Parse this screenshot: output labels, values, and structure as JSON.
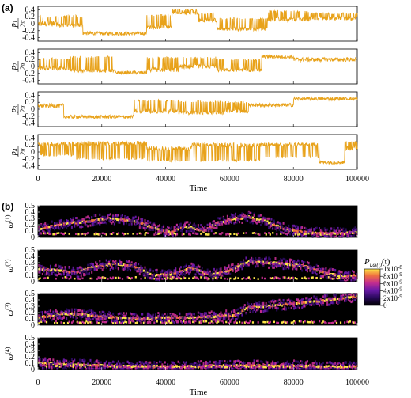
{
  "chart_data": [
    {
      "panel_label": "(a)",
      "type": "line",
      "xlabel": "Time",
      "xlim": [
        0,
        100000
      ],
      "x_ticks": [
        "0",
        "20000",
        "40000",
        "60000",
        "80000",
        "100000"
      ],
      "ylim": [
        -0.5,
        0.5
      ],
      "y_ticks": [
        "0.4",
        "0.2",
        "0",
        "-0.2",
        "-0.4"
      ],
      "line_color": "#e8a21a",
      "series": [
        {
          "ylabel_num": "p",
          "ylabel_sub": "1",
          "ylabel_den": "2π",
          "segments": [
            {
              "x0": 0,
              "x1": 6000,
              "base": 0.0,
              "switch": 0.2,
              "amp": 0.08
            },
            {
              "x0": 6000,
              "x1": 14000,
              "base": -0.05,
              "switch": 0.22,
              "amp": 0.06
            },
            {
              "x0": 14000,
              "x1": 34000,
              "base": -0.28,
              "switch": 0.0,
              "amp": 0.05
            },
            {
              "x0": 34000,
              "x1": 42000,
              "base": -0.1,
              "switch": 0.25,
              "amp": 0.06
            },
            {
              "x0": 42000,
              "x1": 50000,
              "base": 0.3,
              "switch": 0.4,
              "amp": 0.04
            },
            {
              "x0": 50000,
              "x1": 56000,
              "base": 0.1,
              "switch": 0.3,
              "amp": 0.06
            },
            {
              "x0": 56000,
              "x1": 72000,
              "base": -0.15,
              "switch": 0.15,
              "amp": 0.05
            },
            {
              "x0": 72000,
              "x1": 85000,
              "base": 0.12,
              "switch": 0.35,
              "amp": 0.06
            },
            {
              "x0": 85000,
              "x1": 100000,
              "base": 0.15,
              "switch": 0.3,
              "amp": 0.05
            }
          ]
        },
        {
          "ylabel_num": "p",
          "ylabel_sub": "2",
          "ylabel_den": "2π",
          "segments": [
            {
              "x0": 0,
              "x1": 10000,
              "base": -0.05,
              "switch": 0.22,
              "amp": 0.06
            },
            {
              "x0": 10000,
              "x1": 24000,
              "base": -0.12,
              "switch": 0.28,
              "amp": 0.05
            },
            {
              "x0": 24000,
              "x1": 34000,
              "base": -0.18,
              "switch": 0.0,
              "amp": 0.05
            },
            {
              "x0": 34000,
              "x1": 44000,
              "base": -0.1,
              "switch": 0.25,
              "amp": 0.06
            },
            {
              "x0": 44000,
              "x1": 56000,
              "base": 0.0,
              "switch": 0.25,
              "amp": 0.06
            },
            {
              "x0": 56000,
              "x1": 70000,
              "base": -0.1,
              "switch": 0.2,
              "amp": 0.05
            },
            {
              "x0": 70000,
              "x1": 80000,
              "base": 0.28,
              "switch": 0.0,
              "amp": 0.05
            },
            {
              "x0": 80000,
              "x1": 100000,
              "base": 0.2,
              "switch": 0.0,
              "amp": 0.06
            }
          ]
        },
        {
          "ylabel_num": "p",
          "ylabel_sub": "3",
          "ylabel_den": "2π",
          "segments": [
            {
              "x0": 0,
              "x1": 8000,
              "base": 0.1,
              "switch": 0.0,
              "amp": 0.06
            },
            {
              "x0": 8000,
              "x1": 30000,
              "base": -0.22,
              "switch": 0.0,
              "amp": 0.05
            },
            {
              "x0": 30000,
              "x1": 44000,
              "base": -0.05,
              "switch": 0.25,
              "amp": 0.06
            },
            {
              "x0": 44000,
              "x1": 58000,
              "base": -0.1,
              "switch": 0.22,
              "amp": 0.05
            },
            {
              "x0": 58000,
              "x1": 66000,
              "base": -0.05,
              "switch": 0.2,
              "amp": 0.06
            },
            {
              "x0": 66000,
              "x1": 80000,
              "base": 0.12,
              "switch": 0.0,
              "amp": 0.05
            },
            {
              "x0": 80000,
              "x1": 100000,
              "base": 0.3,
              "switch": 0.0,
              "amp": 0.05
            }
          ]
        },
        {
          "ylabel_num": "p",
          "ylabel_sub": "4",
          "ylabel_den": "2π",
          "segments": [
            {
              "x0": 0,
              "x1": 12000,
              "base": 0.22,
              "switch": -0.1,
              "amp": 0.06
            },
            {
              "x0": 12000,
              "x1": 34000,
              "base": 0.25,
              "switch": -0.2,
              "amp": 0.06
            },
            {
              "x0": 34000,
              "x1": 48000,
              "base": 0.1,
              "switch": -0.25,
              "amp": 0.06
            },
            {
              "x0": 48000,
              "x1": 70000,
              "base": 0.2,
              "switch": -0.25,
              "amp": 0.06
            },
            {
              "x0": 70000,
              "x1": 88000,
              "base": 0.22,
              "switch": -0.15,
              "amp": 0.05
            },
            {
              "x0": 88000,
              "x1": 96000,
              "base": -0.3,
              "switch": 0.0,
              "amp": 0.05
            },
            {
              "x0": 96000,
              "x1": 100000,
              "base": 0.1,
              "switch": 0.3,
              "amp": 0.06
            }
          ]
        }
      ]
    },
    {
      "panel_label": "(b)",
      "type": "heatmap",
      "xlabel": "Time",
      "xlim": [
        0,
        100000
      ],
      "x_ticks": [
        "0",
        "20000",
        "40000",
        "60000",
        "80000",
        "100000"
      ],
      "ylim": [
        0,
        0.5
      ],
      "y_ticks": [
        "0.5",
        "0.4",
        "0.3",
        "0.2",
        "0.1",
        "0"
      ],
      "colormap": [
        "#000000",
        "#2a0a5e",
        "#6a1aa8",
        "#c42d8f",
        "#f07040",
        "#fde647"
      ],
      "colorbar": {
        "title_main": "P",
        "title_sub": "i,ω(i)",
        "title_tail": "(t)",
        "range": [
          0,
          1e-08
        ],
        "ticks": [
          {
            "mant": "1x10",
            "exp": "-8"
          },
          {
            "mant": "8x10",
            "exp": "-9"
          },
          {
            "mant": "6x10",
            "exp": "-9"
          },
          {
            "mant": "4x10",
            "exp": "-9"
          },
          {
            "mant": "2x10",
            "exp": "-9"
          },
          {
            "mant": "0",
            "exp": ""
          }
        ]
      },
      "series": [
        {
          "ylabel_main": "ω",
          "ylabel_sup": "(1)",
          "ridge_x": [
            0,
            8000,
            14000,
            22000,
            30000,
            38000,
            42000,
            46000,
            52000,
            56000,
            60000,
            66000,
            72000,
            78000,
            84000,
            90000,
            96000,
            100000
          ],
          "ridge_y": [
            0.12,
            0.22,
            0.24,
            0.3,
            0.26,
            0.12,
            0.08,
            0.18,
            0.1,
            0.22,
            0.28,
            0.32,
            0.24,
            0.12,
            0.08,
            0.06,
            0.07,
            0.08
          ],
          "floor_y": 0.06
        },
        {
          "ylabel_main": "ω",
          "ylabel_sup": "(2)",
          "ridge_x": [
            0,
            6000,
            12000,
            18000,
            24000,
            30000,
            36000,
            42000,
            48000,
            54000,
            60000,
            66000,
            72000,
            78000,
            84000,
            90000,
            96000,
            100000
          ],
          "ridge_y": [
            0.2,
            0.18,
            0.14,
            0.24,
            0.28,
            0.24,
            0.1,
            0.12,
            0.22,
            0.1,
            0.18,
            0.32,
            0.3,
            0.28,
            0.24,
            0.14,
            0.08,
            0.1
          ],
          "floor_y": 0.06
        },
        {
          "ylabel_main": "ω",
          "ylabel_sup": "(3)",
          "ridge_x": [
            0,
            8000,
            16000,
            24000,
            32000,
            40000,
            48000,
            56000,
            62000,
            66000,
            72000,
            80000,
            88000,
            94000,
            100000
          ],
          "ridge_y": [
            0.12,
            0.18,
            0.16,
            0.12,
            0.1,
            0.12,
            0.12,
            0.14,
            0.16,
            0.28,
            0.3,
            0.34,
            0.38,
            0.42,
            0.46
          ],
          "floor_y": 0.05
        },
        {
          "ylabel_main": "ω",
          "ylabel_sup": "(4)",
          "ridge_x": [
            0,
            10000,
            20000,
            30000,
            40000,
            50000,
            60000,
            70000,
            80000,
            90000,
            96000,
            100000
          ],
          "ridge_y": [
            0.1,
            0.08,
            0.06,
            0.05,
            0.04,
            0.05,
            0.06,
            0.06,
            0.06,
            0.04,
            0.04,
            0.05
          ],
          "floor_y": 0.05
        }
      ]
    }
  ]
}
